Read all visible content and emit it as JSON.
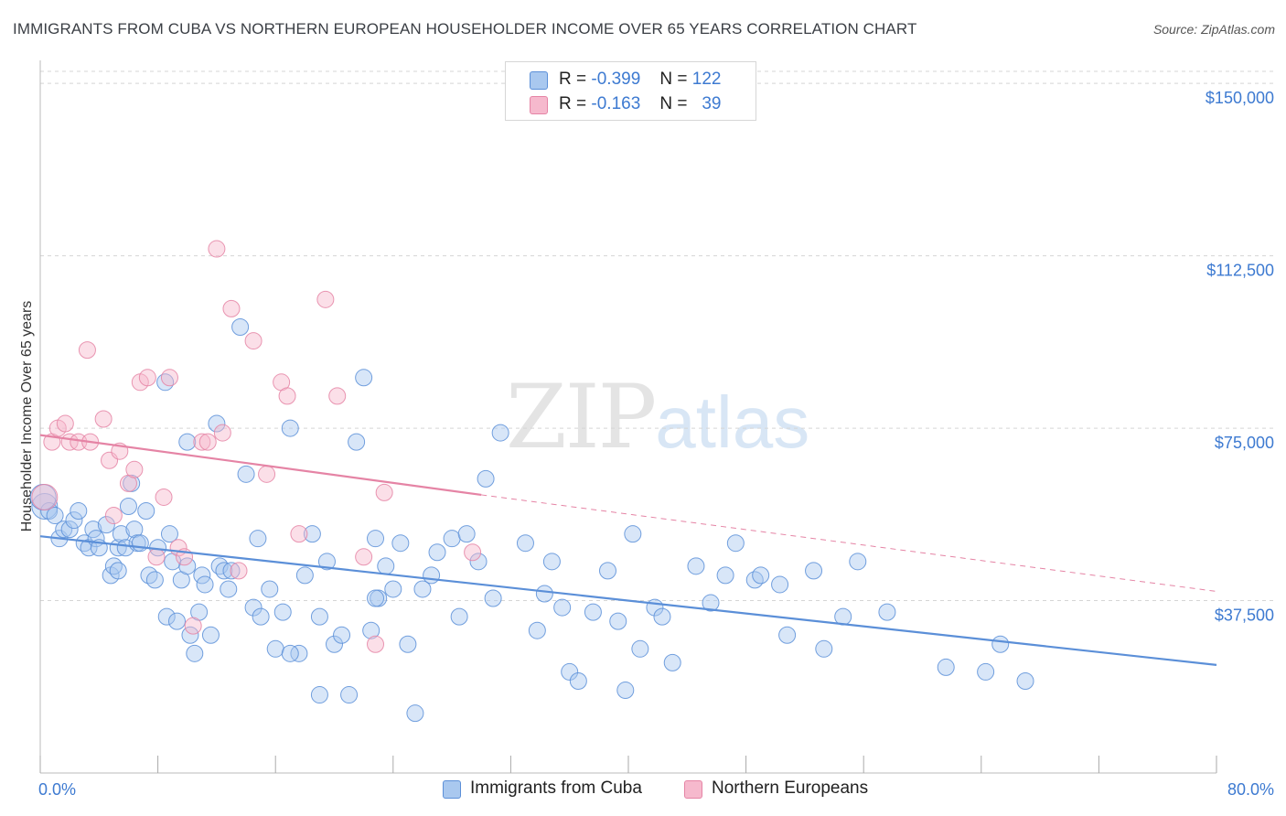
{
  "title": "IMMIGRANTS FROM CUBA VS NORTHERN EUROPEAN HOUSEHOLDER INCOME OVER 65 YEARS CORRELATION CHART",
  "source": "Source: ZipAtlas.com",
  "watermark": {
    "zip": "ZIP",
    "atlas": "atlas"
  },
  "legend": {
    "r_label": "R =",
    "n_label": "N =",
    "items": [
      {
        "r": "-0.399",
        "n": "122",
        "color": "#a9c8ef",
        "stroke": "#5b8fd8"
      },
      {
        "r": "-0.163",
        "n": "39",
        "color": "#f6b9cd",
        "stroke": "#e584a5"
      }
    ]
  },
  "bottom_legend": [
    {
      "label": "Immigrants from Cuba",
      "color": "#a9c8ef",
      "stroke": "#5b8fd8"
    },
    {
      "label": "Northern Europeans",
      "color": "#f6b9cd",
      "stroke": "#e584a5"
    }
  ],
  "chart_data": {
    "type": "scatter",
    "xlabel": "",
    "ylabel": "Householder Income Over 65 years",
    "xlim": [
      0,
      80
    ],
    "ylim": [
      0,
      155000
    ],
    "x_tick_labels": [
      "0.0%",
      "80.0%"
    ],
    "y_ticks": [
      37500,
      75000,
      112500,
      150000
    ],
    "y_tick_labels": [
      "$37,500",
      "$75,000",
      "$112,500",
      "$150,000"
    ],
    "grid": true,
    "series": [
      {
        "name": "Immigrants from Cuba",
        "color": "#5b8fd8",
        "fill": "#a9c8ef",
        "trend": {
          "x": [
            0,
            80
          ],
          "y": [
            51500,
            23500
          ],
          "style": "solid"
        },
        "points": [
          [
            0.3,
            58000
          ],
          [
            0.6,
            57000
          ],
          [
            1.0,
            56000
          ],
          [
            1.3,
            51000
          ],
          [
            1.6,
            53000
          ],
          [
            2.0,
            53000
          ],
          [
            2.3,
            55000
          ],
          [
            2.6,
            57000
          ],
          [
            3.0,
            50000
          ],
          [
            3.3,
            49000
          ],
          [
            3.6,
            53000
          ],
          [
            3.8,
            51000
          ],
          [
            4.0,
            49000
          ],
          [
            4.5,
            54000
          ],
          [
            4.8,
            43000
          ],
          [
            5.0,
            45000
          ],
          [
            5.3,
            49000
          ],
          [
            5.5,
            52000
          ],
          [
            5.8,
            49000
          ],
          [
            6.0,
            58000
          ],
          [
            6.2,
            63000
          ],
          [
            6.4,
            53000
          ],
          [
            6.6,
            50000
          ],
          [
            6.8,
            50000
          ],
          [
            7.2,
            57000
          ],
          [
            7.4,
            43000
          ],
          [
            7.8,
            42000
          ],
          [
            8.0,
            49000
          ],
          [
            8.6,
            34000
          ],
          [
            8.8,
            52000
          ],
          [
            9.0,
            46000
          ],
          [
            9.3,
            33000
          ],
          [
            9.6,
            42000
          ],
          [
            10.0,
            45000
          ],
          [
            10.2,
            30000
          ],
          [
            10.5,
            26000
          ],
          [
            10.8,
            35000
          ],
          [
            11.0,
            43000
          ],
          [
            11.2,
            41000
          ],
          [
            11.6,
            30000
          ],
          [
            12.2,
            45000
          ],
          [
            12.5,
            44000
          ],
          [
            12.8,
            40000
          ],
          [
            13.0,
            44000
          ],
          [
            13.6,
            97000
          ],
          [
            14.0,
            65000
          ],
          [
            14.5,
            36000
          ],
          [
            14.8,
            51000
          ],
          [
            15.0,
            34000
          ],
          [
            15.6,
            40000
          ],
          [
            16.0,
            27000
          ],
          [
            16.5,
            35000
          ],
          [
            17.0,
            75000
          ],
          [
            17.6,
            26000
          ],
          [
            18.0,
            43000
          ],
          [
            18.5,
            52000
          ],
          [
            19.0,
            34000
          ],
          [
            19.5,
            46000
          ],
          [
            20.0,
            28000
          ],
          [
            20.5,
            30000
          ],
          [
            21.0,
            17000
          ],
          [
            21.5,
            72000
          ],
          [
            22.0,
            86000
          ],
          [
            22.5,
            31000
          ],
          [
            22.8,
            51000
          ],
          [
            23.0,
            38000
          ],
          [
            23.5,
            45000
          ],
          [
            24.0,
            40000
          ],
          [
            24.5,
            50000
          ],
          [
            25.0,
            28000
          ],
          [
            25.5,
            13000
          ],
          [
            26.0,
            40000
          ],
          [
            26.6,
            43000
          ],
          [
            27.0,
            48000
          ],
          [
            28.0,
            51000
          ],
          [
            28.5,
            34000
          ],
          [
            29.0,
            52000
          ],
          [
            29.8,
            46000
          ],
          [
            30.3,
            64000
          ],
          [
            30.8,
            38000
          ],
          [
            31.3,
            74000
          ],
          [
            33.0,
            50000
          ],
          [
            33.8,
            31000
          ],
          [
            34.3,
            39000
          ],
          [
            34.8,
            46000
          ],
          [
            35.5,
            36000
          ],
          [
            36.0,
            22000
          ],
          [
            36.6,
            20000
          ],
          [
            37.6,
            35000
          ],
          [
            38.6,
            44000
          ],
          [
            39.3,
            33000
          ],
          [
            39.8,
            18000
          ],
          [
            40.3,
            52000
          ],
          [
            40.8,
            27000
          ],
          [
            41.8,
            36000
          ],
          [
            42.3,
            34000
          ],
          [
            43.0,
            24000
          ],
          [
            44.6,
            45000
          ],
          [
            45.6,
            37000
          ],
          [
            46.6,
            43000
          ],
          [
            47.3,
            50000
          ],
          [
            48.6,
            42000
          ],
          [
            49.0,
            43000
          ],
          [
            50.3,
            41000
          ],
          [
            50.8,
            30000
          ],
          [
            52.6,
            44000
          ],
          [
            53.3,
            27000
          ],
          [
            54.6,
            34000
          ],
          [
            55.6,
            46000
          ],
          [
            57.6,
            35000
          ],
          [
            61.6,
            23000
          ],
          [
            64.3,
            22000
          ],
          [
            65.3,
            28000
          ],
          [
            67.0,
            20000
          ],
          [
            5.3,
            44000
          ],
          [
            17.0,
            26000
          ],
          [
            12.0,
            76000
          ],
          [
            10.0,
            72000
          ],
          [
            8.5,
            85000
          ],
          [
            0.2,
            60000
          ],
          [
            19.0,
            17000
          ],
          [
            22.8,
            38000
          ]
        ]
      },
      {
        "name": "Northern Europeans",
        "color": "#e584a5",
        "fill": "#f6b9cd",
        "trend": {
          "x": [
            0,
            30
          ],
          "y": [
            73500,
            60500
          ],
          "style": "solid",
          "extend": {
            "x": [
              30,
              80
            ],
            "y": [
              60500,
              39500
            ],
            "style": "dashed"
          }
        },
        "points": [
          [
            0.3,
            60000
          ],
          [
            0.8,
            72000
          ],
          [
            1.2,
            75000
          ],
          [
            1.7,
            76000
          ],
          [
            2.0,
            72000
          ],
          [
            2.6,
            72000
          ],
          [
            3.2,
            92000
          ],
          [
            3.4,
            72000
          ],
          [
            4.3,
            77000
          ],
          [
            4.7,
            68000
          ],
          [
            5.0,
            56000
          ],
          [
            5.4,
            70000
          ],
          [
            6.0,
            63000
          ],
          [
            6.4,
            66000
          ],
          [
            6.8,
            85000
          ],
          [
            7.3,
            86000
          ],
          [
            7.9,
            47000
          ],
          [
            8.4,
            60000
          ],
          [
            8.8,
            86000
          ],
          [
            9.4,
            49000
          ],
          [
            9.8,
            47000
          ],
          [
            10.4,
            32000
          ],
          [
            11.0,
            72000
          ],
          [
            11.4,
            72000
          ],
          [
            12.0,
            114000
          ],
          [
            12.4,
            74000
          ],
          [
            13.0,
            101000
          ],
          [
            13.5,
            44000
          ],
          [
            14.5,
            94000
          ],
          [
            15.4,
            65000
          ],
          [
            16.4,
            85000
          ],
          [
            16.8,
            82000
          ],
          [
            17.6,
            52000
          ],
          [
            19.4,
            103000
          ],
          [
            20.2,
            82000
          ],
          [
            22.0,
            47000
          ],
          [
            22.8,
            28000
          ],
          [
            23.4,
            61000
          ],
          [
            29.4,
            48000
          ]
        ]
      }
    ]
  }
}
